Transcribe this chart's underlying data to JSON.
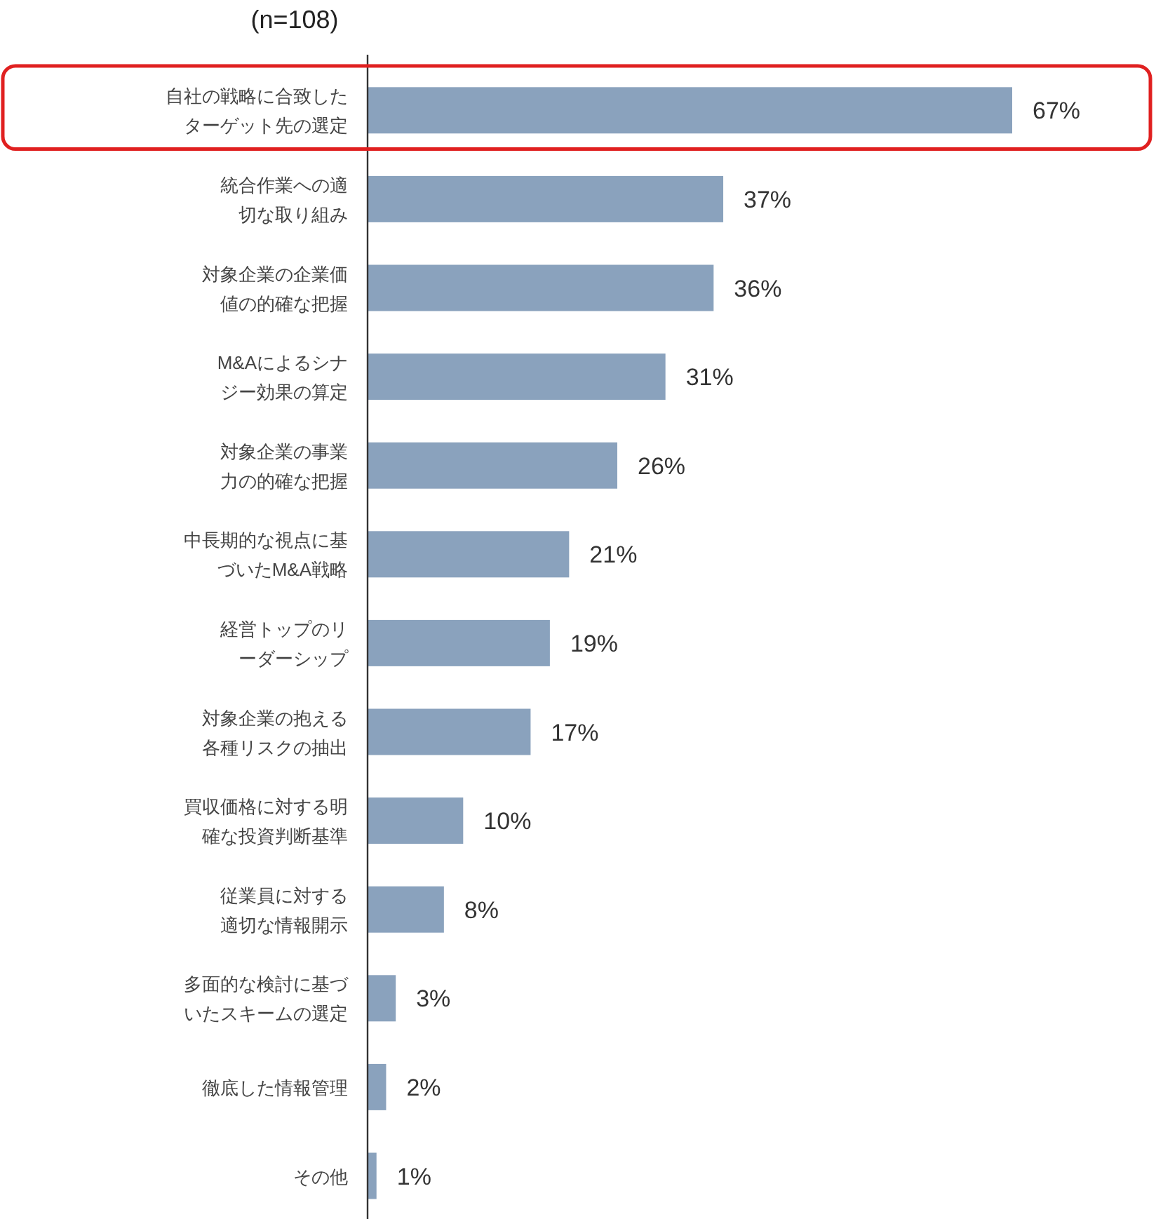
{
  "chart_data": {
    "type": "bar",
    "orientation": "horizontal",
    "subtitle": "(n=108)",
    "categories": [
      "自社の戦略に合致したターゲット先の選定",
      "統合作業への適切な取り組み",
      "対象企業の企業価値の的確な把握",
      "M&Aによるシナジー効果の算定",
      "対象企業の事業力の的確な把握",
      "中長期的な視点に基づいたM&A戦略",
      "経営トップのリーダーシップ",
      "対象企業の抱える各種リスクの抽出",
      "買収価格に対する明確な投資判断基準",
      "従業員に対する適切な情報開示",
      "多面的な検討に基づいたスキームの選定",
      "徹底した情報管理",
      "その他"
    ],
    "values": [
      67,
      37,
      36,
      31,
      26,
      21,
      19,
      17,
      10,
      8,
      3,
      2,
      1
    ],
    "value_labels": [
      "67%",
      "37%",
      "36%",
      "31%",
      "26%",
      "21%",
      "19%",
      "17%",
      "10%",
      "8%",
      "3%",
      "2%",
      "1%"
    ],
    "color": "#8aa2bd"
  }
}
